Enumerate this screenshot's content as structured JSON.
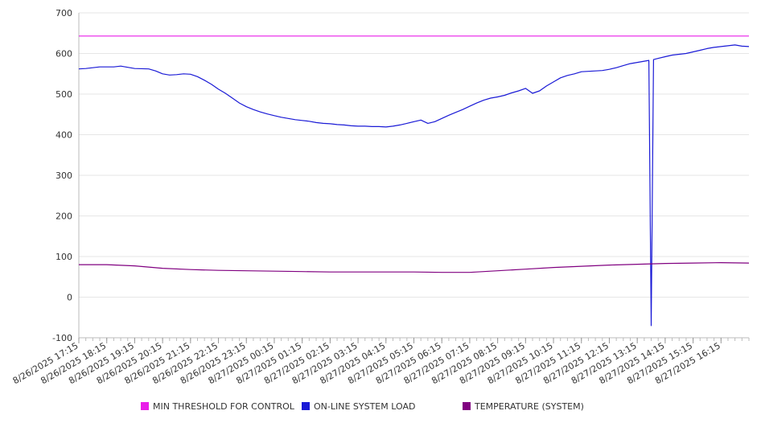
{
  "chart_data": {
    "type": "line",
    "title": "",
    "xlabel": "",
    "ylabel": "",
    "ylim": [
      -100,
      700
    ],
    "y_ticks": [
      700,
      600,
      500,
      400,
      300,
      200,
      100,
      0,
      -100
    ],
    "grid": true,
    "legend_position": "bottom",
    "x_ticks": [
      "8/26/2025 17:15",
      "8/26/2025 18:15",
      "8/26/2025 19:15",
      "8/26/2025 20:15",
      "8/26/2025 21:15",
      "8/26/2025 22:15",
      "8/26/2025 23:15",
      "8/27/2025 00:15",
      "8/27/2025 01:15",
      "8/27/2025 02:15",
      "8/27/2025 03:15",
      "8/27/2025 04:15",
      "8/27/2025 05:15",
      "8/27/2025 06:15",
      "8/27/2025 07:15",
      "8/27/2025 08:15",
      "8/27/2025 09:15",
      "8/27/2025 10:15",
      "8/27/2025 11:15",
      "8/27/2025 12:15",
      "8/27/2025 13:15",
      "8/27/2025 14:15",
      "8/27/2025 15:15",
      "8/27/2025 16:15"
    ],
    "series": [
      {
        "name": "MIN THRESHOLD FOR CONTROL",
        "color": "#e91ee9",
        "points": [
          [
            "8/26/2025 17:15",
            643
          ],
          [
            "8/27/2025 17:15",
            643
          ]
        ]
      },
      {
        "name": "ON-LINE SYSTEM LOAD",
        "color": "#1a1ad6",
        "points": [
          [
            "8/26/2025 17:15",
            562
          ],
          [
            "8/26/2025 17:30",
            563
          ],
          [
            "8/26/2025 18:00",
            567
          ],
          [
            "8/26/2025 18:30",
            567
          ],
          [
            "8/26/2025 18:45",
            569
          ],
          [
            "8/26/2025 19:15",
            563
          ],
          [
            "8/26/2025 19:45",
            562
          ],
          [
            "8/26/2025 20:00",
            557
          ],
          [
            "8/26/2025 20:15",
            550
          ],
          [
            "8/26/2025 20:30",
            547
          ],
          [
            "8/26/2025 20:45",
            548
          ],
          [
            "8/26/2025 21:00",
            550
          ],
          [
            "8/26/2025 21:15",
            549
          ],
          [
            "8/26/2025 21:30",
            543
          ],
          [
            "8/26/2025 21:45",
            534
          ],
          [
            "8/26/2025 22:00",
            524
          ],
          [
            "8/26/2025 22:15",
            512
          ],
          [
            "8/26/2025 22:30",
            502
          ],
          [
            "8/26/2025 22:45",
            490
          ],
          [
            "8/26/2025 23:00",
            478
          ],
          [
            "8/26/2025 23:15",
            469
          ],
          [
            "8/26/2025 23:30",
            462
          ],
          [
            "8/26/2025 23:45",
            456
          ],
          [
            "8/27/2025 00:00",
            451
          ],
          [
            "8/27/2025 00:15",
            447
          ],
          [
            "8/27/2025 00:30",
            443
          ],
          [
            "8/27/2025 00:45",
            440
          ],
          [
            "8/27/2025 01:00",
            437
          ],
          [
            "8/27/2025 01:15",
            435
          ],
          [
            "8/27/2025 01:30",
            433
          ],
          [
            "8/27/2025 01:45",
            430
          ],
          [
            "8/27/2025 02:00",
            428
          ],
          [
            "8/27/2025 02:15",
            427
          ],
          [
            "8/27/2025 02:30",
            425
          ],
          [
            "8/27/2025 02:45",
            424
          ],
          [
            "8/27/2025 03:00",
            422
          ],
          [
            "8/27/2025 03:15",
            421
          ],
          [
            "8/27/2025 03:30",
            421
          ],
          [
            "8/27/2025 03:45",
            420
          ],
          [
            "8/27/2025 04:00",
            420
          ],
          [
            "8/27/2025 04:15",
            419
          ],
          [
            "8/27/2025 04:30",
            421
          ],
          [
            "8/27/2025 04:45",
            424
          ],
          [
            "8/27/2025 05:00",
            428
          ],
          [
            "8/27/2025 05:15",
            432
          ],
          [
            "8/27/2025 05:30",
            436
          ],
          [
            "8/27/2025 05:45",
            428
          ],
          [
            "8/27/2025 06:00",
            432
          ],
          [
            "8/27/2025 06:15",
            440
          ],
          [
            "8/27/2025 06:30",
            448
          ],
          [
            "8/27/2025 06:45",
            455
          ],
          [
            "8/27/2025 07:00",
            462
          ],
          [
            "8/27/2025 07:15",
            470
          ],
          [
            "8/27/2025 07:30",
            478
          ],
          [
            "8/27/2025 07:45",
            485
          ],
          [
            "8/27/2025 08:00",
            490
          ],
          [
            "8/27/2025 08:15",
            493
          ],
          [
            "8/27/2025 08:30",
            497
          ],
          [
            "8/27/2025 08:45",
            503
          ],
          [
            "8/27/2025 09:00",
            508
          ],
          [
            "8/27/2025 09:15",
            514
          ],
          [
            "8/27/2025 09:30",
            502
          ],
          [
            "8/27/2025 09:45",
            508
          ],
          [
            "8/27/2025 10:00",
            520
          ],
          [
            "8/27/2025 10:15",
            530
          ],
          [
            "8/27/2025 10:30",
            540
          ],
          [
            "8/27/2025 10:45",
            546
          ],
          [
            "8/27/2025 11:00",
            550
          ],
          [
            "8/27/2025 11:15",
            555
          ],
          [
            "8/27/2025 11:30",
            556
          ],
          [
            "8/27/2025 11:45",
            557
          ],
          [
            "8/27/2025 12:00",
            558
          ],
          [
            "8/27/2025 12:15",
            561
          ],
          [
            "8/27/2025 12:30",
            565
          ],
          [
            "8/27/2025 12:45",
            570
          ],
          [
            "8/27/2025 13:00",
            575
          ],
          [
            "8/27/2025 13:15",
            578
          ],
          [
            "8/27/2025 13:30",
            581
          ],
          [
            "8/27/2025 13:40",
            583
          ],
          [
            "8/27/2025 13:45",
            -70
          ],
          [
            "8/27/2025 13:50",
            585
          ],
          [
            "8/27/2025 14:00",
            588
          ],
          [
            "8/27/2025 14:15",
            592
          ],
          [
            "8/27/2025 14:30",
            596
          ],
          [
            "8/27/2025 14:45",
            598
          ],
          [
            "8/27/2025 15:00",
            600
          ],
          [
            "8/27/2025 15:15",
            604
          ],
          [
            "8/27/2025 15:30",
            608
          ],
          [
            "8/27/2025 15:45",
            612
          ],
          [
            "8/27/2025 16:00",
            615
          ],
          [
            "8/27/2025 16:15",
            617
          ],
          [
            "8/27/2025 16:30",
            619
          ],
          [
            "8/27/2025 16:45",
            621
          ],
          [
            "8/27/2025 17:00",
            618
          ],
          [
            "8/27/2025 17:15",
            617
          ]
        ]
      },
      {
        "name": "TEMPERATURE (SYSTEM)",
        "color": "#800080",
        "points": [
          [
            "8/26/2025 17:15",
            80
          ],
          [
            "8/26/2025 18:15",
            80
          ],
          [
            "8/26/2025 19:15",
            77
          ],
          [
            "8/26/2025 20:15",
            71
          ],
          [
            "8/26/2025 21:15",
            68
          ],
          [
            "8/26/2025 22:15",
            66
          ],
          [
            "8/26/2025 23:15",
            65
          ],
          [
            "8/27/2025 00:15",
            64
          ],
          [
            "8/27/2025 01:15",
            63
          ],
          [
            "8/27/2025 02:15",
            62
          ],
          [
            "8/27/2025 03:15",
            62
          ],
          [
            "8/27/2025 04:15",
            62
          ],
          [
            "8/27/2025 05:15",
            62
          ],
          [
            "8/27/2025 06:15",
            61
          ],
          [
            "8/27/2025 07:15",
            61
          ],
          [
            "8/27/2025 08:15",
            65
          ],
          [
            "8/27/2025 09:15",
            69
          ],
          [
            "8/27/2025 10:15",
            73
          ],
          [
            "8/27/2025 11:15",
            76
          ],
          [
            "8/27/2025 12:15",
            79
          ],
          [
            "8/27/2025 13:15",
            81
          ],
          [
            "8/27/2025 14:15",
            83
          ],
          [
            "8/27/2025 15:15",
            84
          ],
          [
            "8/27/2025 16:15",
            85
          ],
          [
            "8/27/2025 17:15",
            84
          ]
        ]
      }
    ]
  }
}
